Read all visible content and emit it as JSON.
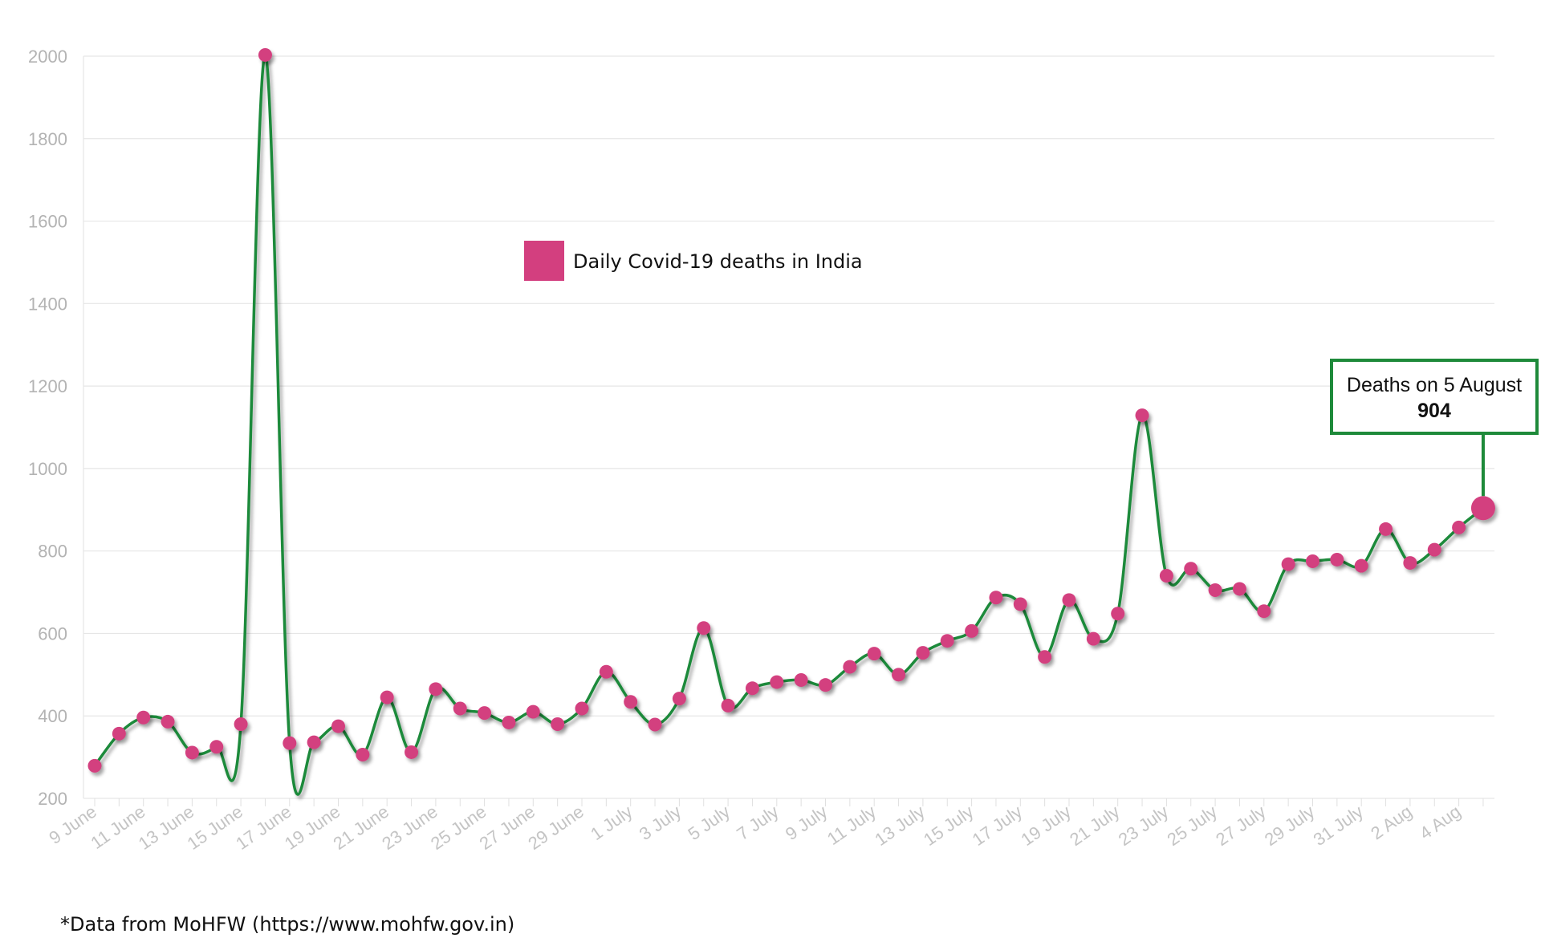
{
  "chart_data": {
    "type": "line",
    "legend": {
      "label": "Daily Covid-19 deaths in India",
      "color": "#d33f7f",
      "placement": "top-center"
    },
    "line_color": "#1e8a3a",
    "marker_color": "#d33f7f",
    "grid": true,
    "ylim": [
      200,
      2000
    ],
    "yticks": [
      200,
      400,
      600,
      800,
      1000,
      1200,
      1400,
      1600,
      1800,
      2000
    ],
    "xtick_labels": [
      "9 June",
      "11 June",
      "13 June",
      "15 June",
      "17 June",
      "19 June",
      "21 June",
      "23 June",
      "25 June",
      "27 June",
      "29 June",
      "1 July",
      "3 July",
      "5 July",
      "7 July",
      "9 July",
      "11 July",
      "13 July",
      "15 July",
      "17 July",
      "19 July",
      "21 July",
      "23 July",
      "25 July",
      "27 July",
      "29 July",
      "31 July",
      "2 Aug",
      "4 Aug"
    ],
    "series": [
      {
        "values": [
          279,
          357,
          396,
          386,
          311,
          325,
          380,
          2003,
          334,
          336,
          375,
          306,
          445,
          312,
          465,
          418,
          407,
          384,
          410,
          380,
          418,
          507,
          434,
          379,
          442,
          613,
          425,
          467,
          482,
          487,
          475,
          519,
          551,
          500,
          553,
          582,
          606,
          687,
          671,
          543,
          681,
          587,
          648,
          1129,
          740,
          757,
          705,
          708,
          654,
          768,
          775,
          779,
          764,
          853,
          771,
          803,
          857,
          904
        ]
      }
    ],
    "annotation": {
      "title": "Deaths on 5 August",
      "value": "904"
    },
    "source_note": "*Data from MoHFW (https://www.mohfw.gov.in)"
  }
}
